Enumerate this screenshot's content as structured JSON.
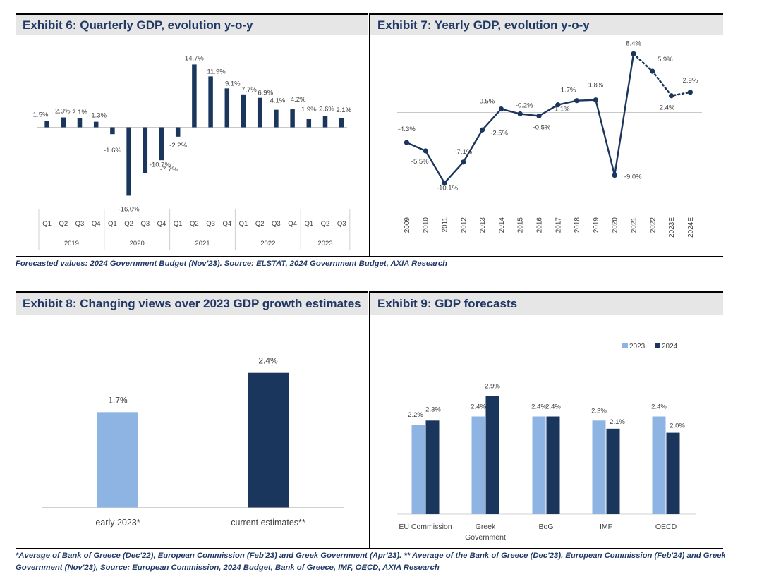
{
  "exhibits": {
    "ex6_title": "Exhibit 6: Quarterly GDP, evolution y-o-y",
    "ex7_title": "Exhibit 7: Yearly GDP, evolution y-o-y",
    "ex8_title": "Exhibit 8: Changing views over 2023 GDP growth estimates",
    "ex9_title": "Exhibit 9: GDP forecasts"
  },
  "notes": {
    "top_source": "Forecasted values: 2024 Government Budget (Nov'23). Source: ELSTAT, 2024 Government Budget, AXIA Research",
    "bottom_source": "*Average of Bank of Greece (Dec'22), European Commission (Feb'23) and Greek Government (Apr'23). ** Average of the Bank of Greece (Dec'23), European Commission (Feb'24) and Greek Government (Nov'23), Source: European Commission, 2024 Budget, Bank of Greece, IMF, OECD, AXIA Research"
  },
  "colors": {
    "dark": "#1b365d",
    "light": "#8eb4e3",
    "header_bg": "#e6e6e6",
    "title": "#1f3864"
  },
  "chart_data": [
    {
      "id": "ex6",
      "type": "bar",
      "categories": [
        "Q1",
        "Q2",
        "Q3",
        "Q4",
        "Q1",
        "Q2",
        "Q3",
        "Q4",
        "Q1",
        "Q2",
        "Q3",
        "Q4",
        "Q1",
        "Q2",
        "Q3",
        "Q4",
        "Q1",
        "Q2",
        "Q3"
      ],
      "groups": [
        "2019",
        "2020",
        "2021",
        "2022",
        "2023"
      ],
      "group_sizes": [
        4,
        4,
        4,
        4,
        3
      ],
      "values": [
        1.5,
        2.3,
        2.1,
        1.3,
        -1.6,
        -16.0,
        -10.7,
        -7.7,
        -2.2,
        14.7,
        11.9,
        9.1,
        7.7,
        6.9,
        4.1,
        4.2,
        1.9,
        2.6,
        2.1
      ],
      "labels": [
        "1.5%",
        "2.3%",
        "2.1%",
        "1.3%",
        "-1.6%",
        "-16.0%",
        "-10.7%",
        "-7.7%",
        "-2.2%",
        "14.7%",
        "11.9%",
        "9.1%",
        "7.7%",
        "6.9%",
        "4.1%",
        "4.2%",
        "1.9%",
        "2.6%",
        "2.1%"
      ],
      "ylim": [
        -17,
        16
      ]
    },
    {
      "id": "ex7",
      "type": "line",
      "x": [
        "2009",
        "2010",
        "2011",
        "2012",
        "2013",
        "2014",
        "2015",
        "2016",
        "2017",
        "2018",
        "2019",
        "2020",
        "2021",
        "2022",
        "2023E",
        "2024E"
      ],
      "values": [
        -4.3,
        -5.5,
        -10.1,
        -7.1,
        -2.5,
        0.5,
        -0.2,
        -0.5,
        1.1,
        1.7,
        1.8,
        -9.0,
        8.4,
        5.9,
        2.4,
        2.9
      ],
      "labels": [
        "-4.3%",
        "-5.5%",
        "-10.1%",
        "-7.1%",
        "-2.5%",
        "0.5%",
        "-0.2%",
        "-0.5%",
        "1.1%",
        "1.7%",
        "1.8%",
        "-9.0%",
        "8.4%",
        "5.9%",
        "2.4%",
        "2.9%"
      ],
      "forecast_from_index": 13,
      "ylim": [
        -11,
        9
      ]
    },
    {
      "id": "ex8",
      "type": "bar",
      "categories": [
        "early 2023*",
        "current estimates**"
      ],
      "values": [
        1.7,
        2.4
      ],
      "labels": [
        "1.7%",
        "2.4%"
      ],
      "ylim": [
        0,
        3
      ]
    },
    {
      "id": "ex9",
      "type": "bar",
      "categories": [
        "EU Commission",
        "Greek Government",
        "BoG",
        "IMF",
        "OECD"
      ],
      "category_lines": [
        [
          "EU Commission"
        ],
        [
          "Greek",
          "Government"
        ],
        [
          "BoG"
        ],
        [
          "IMF"
        ],
        [
          "OECD"
        ]
      ],
      "series": [
        {
          "name": "2023",
          "values": [
            2.2,
            2.4,
            2.4,
            2.3,
            2.4
          ],
          "labels": [
            "2.2%",
            "2.4%",
            "2.4%",
            "2.3%",
            "2.4%"
          ]
        },
        {
          "name": "2024",
          "values": [
            2.3,
            2.9,
            2.4,
            2.1,
            2.0
          ],
          "labels": [
            "2.3%",
            "2.9%",
            "2.4%",
            "2.1%",
            "2.0%"
          ]
        }
      ],
      "legend": "top-right",
      "ylim": [
        0,
        3.5
      ]
    }
  ]
}
